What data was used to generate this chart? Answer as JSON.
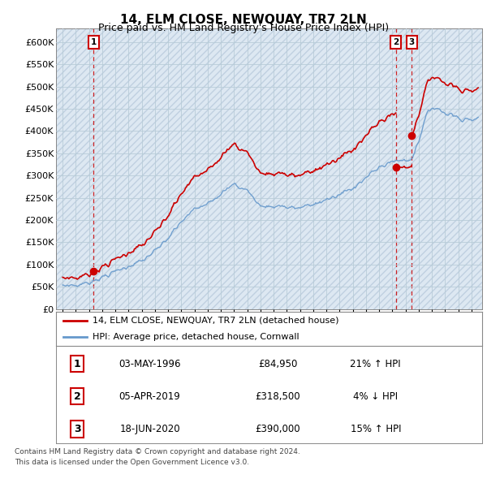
{
  "title": "14, ELM CLOSE, NEWQUAY, TR7 2LN",
  "subtitle": "Price paid vs. HM Land Registry's House Price Index (HPI)",
  "ylabel_ticks": [
    "£0",
    "£50K",
    "£100K",
    "£150K",
    "£200K",
    "£250K",
    "£300K",
    "£350K",
    "£400K",
    "£450K",
    "£500K",
    "£550K",
    "£600K"
  ],
  "ytick_values": [
    0,
    50000,
    100000,
    150000,
    200000,
    250000,
    300000,
    350000,
    400000,
    450000,
    500000,
    550000,
    600000
  ],
  "xlim": [
    1993.5,
    2025.8
  ],
  "ylim": [
    0,
    630000
  ],
  "transactions": [
    {
      "year": 1996.35,
      "price": 84950,
      "label": "1"
    },
    {
      "year": 2019.27,
      "price": 318500,
      "label": "2"
    },
    {
      "year": 2020.46,
      "price": 390000,
      "label": "3"
    }
  ],
  "vlines": [
    1996.35,
    2019.27,
    2020.46
  ],
  "red_line_color": "#cc0000",
  "blue_line_color": "#6699cc",
  "legend_label_red": "14, ELM CLOSE, NEWQUAY, TR7 2LN (detached house)",
  "legend_label_blue": "HPI: Average price, detached house, Cornwall",
  "table_rows": [
    {
      "num": "1",
      "date": "03-MAY-1996",
      "price": "£84,950",
      "hpi": "21% ↑ HPI"
    },
    {
      "num": "2",
      "date": "05-APR-2019",
      "price": "£318,500",
      "hpi": "4% ↓ HPI"
    },
    {
      "num": "3",
      "date": "18-JUN-2020",
      "price": "£390,000",
      "hpi": "15% ↑ HPI"
    }
  ],
  "footnote1": "Contains HM Land Registry data © Crown copyright and database right 2024.",
  "footnote2": "This data is licensed under the Open Government Licence v3.0.",
  "bg_color": "#ffffff",
  "grid_color": "#aabbcc",
  "chart_bg": "#dde8f0"
}
